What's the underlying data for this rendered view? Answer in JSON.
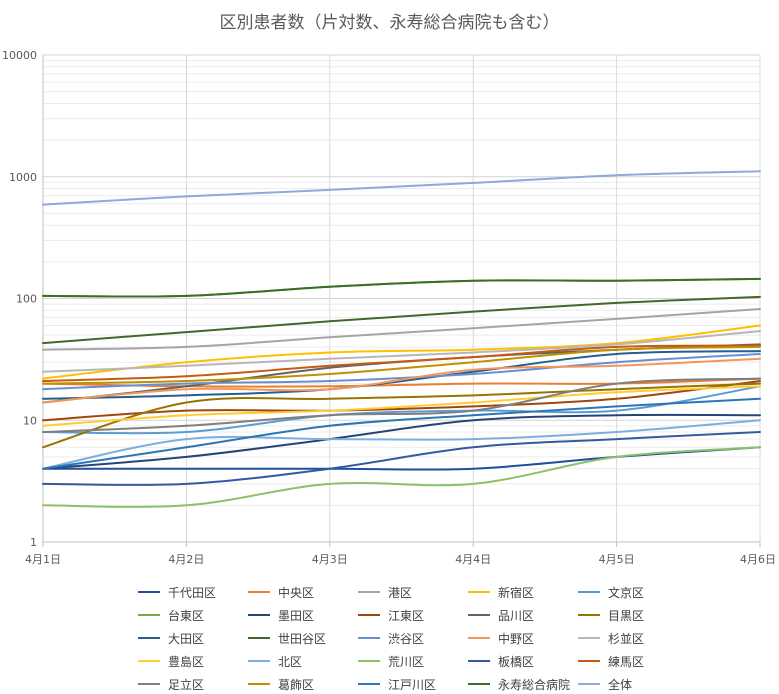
{
  "chart_data": {
    "type": "line",
    "title": "区別患者数（片対数、永寿総合病院も含む）",
    "xlabel": "",
    "ylabel": "",
    "y_scale": "log",
    "ylim": [
      1,
      10000
    ],
    "y_ticks": [
      "1",
      "10",
      "100",
      "1000",
      "10000"
    ],
    "categories": [
      "4月1日",
      "4月2日",
      "4月3日",
      "4月4日",
      "4月5日",
      "4月6日"
    ],
    "grid": "on",
    "legend_position": "bottom",
    "series": [
      {
        "name": "千代田区",
        "color": "#1f4e9a",
        "values": [
          4,
          4,
          4,
          4,
          5,
          6
        ]
      },
      {
        "name": "中央区",
        "color": "#ed7d31",
        "values": [
          20,
          19,
          19,
          20,
          20,
          22
        ]
      },
      {
        "name": "港区",
        "color": "#a5a5a5",
        "values": [
          38,
          40,
          48,
          57,
          68,
          82
        ]
      },
      {
        "name": "新宿区",
        "color": "#ffc000",
        "values": [
          22,
          30,
          36,
          38,
          43,
          60
        ]
      },
      {
        "name": "文京区",
        "color": "#5b9bd5",
        "values": [
          8,
          8,
          11,
          12,
          12,
          19
        ]
      },
      {
        "name": "台東区",
        "color": "#70ad47",
        "values": [
          105,
          105,
          125,
          140,
          140,
          145
        ]
      },
      {
        "name": "墨田区",
        "color": "#264478",
        "values": [
          4,
          5,
          7,
          10,
          11,
          11
        ]
      },
      {
        "name": "江東区",
        "color": "#9e480e",
        "values": [
          10,
          12,
          12,
          13,
          15,
          21
        ]
      },
      {
        "name": "品川区",
        "color": "#636363",
        "values": [
          14,
          19,
          27,
          33,
          38,
          42
        ]
      },
      {
        "name": "目黒区",
        "color": "#997300",
        "values": [
          6,
          14,
          15,
          16,
          18,
          20
        ]
      },
      {
        "name": "大田区",
        "color": "#255e91",
        "values": [
          15,
          16,
          18,
          25,
          35,
          37
        ]
      },
      {
        "name": "世田谷区",
        "color": "#43682b",
        "values": [
          43,
          53,
          65,
          78,
          92,
          103
        ]
      },
      {
        "name": "渋谷区",
        "color": "#698ed0",
        "values": [
          18,
          20,
          21,
          24,
          30,
          35
        ]
      },
      {
        "name": "中野区",
        "color": "#f1975a",
        "values": [
          14,
          18,
          18,
          26,
          28,
          32
        ]
      },
      {
        "name": "杉並区",
        "color": "#b7b7b7",
        "values": [
          25,
          28,
          32,
          36,
          42,
          54
        ]
      },
      {
        "name": "豊島区",
        "color": "#ffcd33",
        "values": [
          9,
          11,
          12,
          14,
          17,
          19
        ]
      },
      {
        "name": "北区",
        "color": "#7cafdd",
        "values": [
          4,
          7,
          7,
          7,
          8,
          10
        ]
      },
      {
        "name": "荒川区",
        "color": "#8cc168",
        "values": [
          2,
          2,
          3,
          3,
          5,
          6
        ]
      },
      {
        "name": "板橋区",
        "color": "#335aa1",
        "values": [
          3,
          3,
          4,
          6,
          7,
          8
        ]
      },
      {
        "name": "練馬区",
        "color": "#c55a11",
        "values": [
          21,
          23,
          28,
          33,
          40,
          41
        ]
      },
      {
        "name": "足立区",
        "color": "#7f7f7f",
        "values": [
          8,
          9,
          11,
          12,
          20,
          22
        ]
      },
      {
        "name": "葛飾区",
        "color": "#bf9000",
        "values": [
          20,
          21,
          24,
          30,
          38,
          40
        ]
      },
      {
        "name": "江戸川区",
        "color": "#2e75b6",
        "values": [
          4,
          6,
          9,
          11,
          13,
          15
        ]
      },
      {
        "name": "永寿総合病院",
        "color": "#3a6e29",
        "values": [
          105,
          105,
          125,
          140,
          140,
          145
        ]
      },
      {
        "name": "全体",
        "color": "#8eaadb",
        "values": [
          590,
          690,
          780,
          890,
          1030,
          1110
        ]
      }
    ]
  }
}
